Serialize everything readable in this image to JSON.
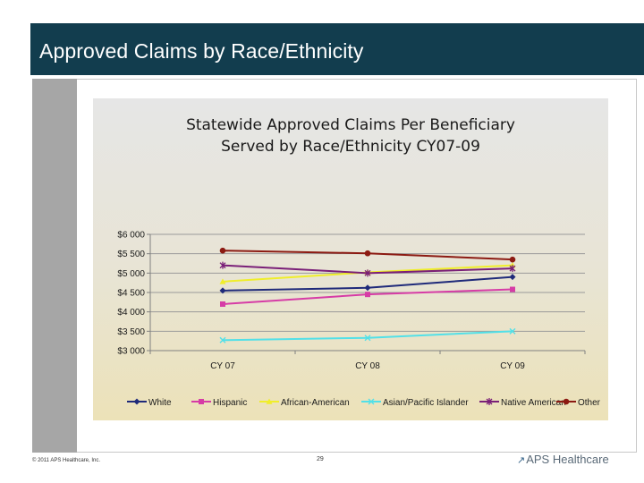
{
  "slide": {
    "title": "Approved Claims by Race/Ethnicity",
    "copyright": "© 2011 APS Healthcare, Inc.",
    "page_number": "29",
    "logo_text": "APS Healthcare"
  },
  "colors": {
    "title_bar": "#123d4e",
    "left_panel": "#a6a6a6"
  },
  "chart_data": {
    "type": "line",
    "title": "Statewide Approved Claims Per Beneficiary Served by Race/Ethnicity CY07-09",
    "title_lines": [
      "Statewide Approved Claims Per Beneficiary",
      "Served by Race/Ethnicity CY07-09"
    ],
    "categories": [
      "CY07",
      "CY08",
      "CY09"
    ],
    "category_labels": [
      "CY 07",
      "CY 08",
      "CY 09"
    ],
    "ylim": [
      3000,
      6000
    ],
    "yticks": [
      3000,
      3500,
      4000,
      4500,
      5000,
      5500,
      6000
    ],
    "ytick_labels": [
      "$3 000",
      "$3 500",
      "$4 000",
      "$4 500",
      "$5 000",
      "$5 500",
      "$6 000"
    ],
    "grid": true,
    "legend_position": "bottom",
    "series": [
      {
        "name": "White",
        "values": [
          4550,
          4620,
          4900
        ],
        "color": "#1f2a7a",
        "marker": "diamond"
      },
      {
        "name": "Hispanic",
        "values": [
          4200,
          4450,
          4580
        ],
        "color": "#d63ca6",
        "marker": "square"
      },
      {
        "name": "African-American",
        "values": [
          4780,
          5020,
          5200
        ],
        "color": "#f0ee2a",
        "marker": "triangle"
      },
      {
        "name": "Asian/Pacific Islander",
        "values": [
          3270,
          3330,
          3500
        ],
        "color": "#52e0e8",
        "marker": "x"
      },
      {
        "name": "Native American",
        "values": [
          5200,
          5000,
          5120
        ],
        "color": "#7a1f78",
        "marker": "star"
      },
      {
        "name": "Other",
        "values": [
          5580,
          5510,
          5350
        ],
        "color": "#8c1a12",
        "marker": "circle"
      }
    ]
  }
}
